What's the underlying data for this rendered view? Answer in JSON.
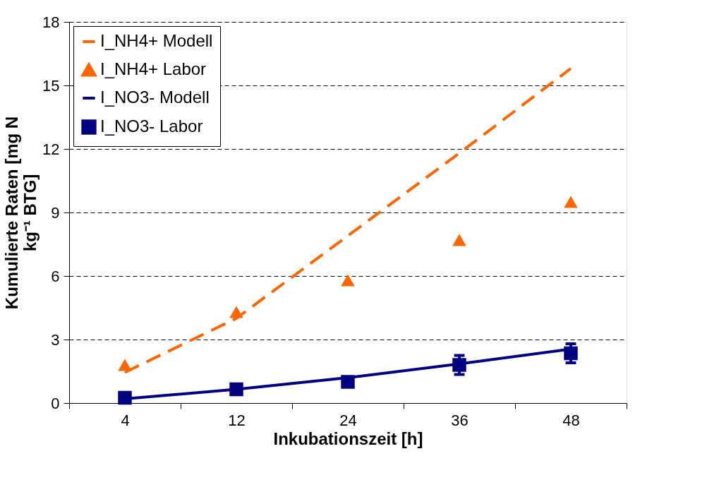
{
  "chart_data": {
    "type": "line",
    "xlabel": "Inkubationszeit [h]",
    "ylabel": "Kumulierte Raten [mg N kg⁻¹ BTG]",
    "categories": [
      "4",
      "12",
      "24",
      "36",
      "48"
    ],
    "series": [
      {
        "name": "I_NH4+ Modell",
        "color": "#ff6600",
        "line_style": "dashed",
        "marker": "none",
        "values": [
          1.45,
          4.0,
          7.9,
          11.8,
          15.8
        ]
      },
      {
        "name": "I_NH4+ Labor",
        "type": "scatter",
        "color": "#ff6600",
        "marker": "triangle",
        "values": [
          1.8,
          4.3,
          5.8,
          7.7,
          9.5
        ]
      },
      {
        "name": "I_NO3- Modell",
        "color": "#000080",
        "line_style": "solid",
        "marker": "none",
        "values": [
          0.2,
          0.65,
          1.2,
          1.85,
          2.55
        ]
      },
      {
        "name": "I_NO3- Labor",
        "type": "scatter",
        "color": "#000080",
        "marker": "square",
        "values": [
          0.25,
          0.65,
          1.0,
          1.8,
          2.35
        ],
        "errors": [
          null,
          null,
          null,
          0.45,
          0.45
        ]
      }
    ],
    "ylim": [
      0,
      18
    ],
    "yticks": [
      0,
      3,
      6,
      9,
      12,
      15,
      18
    ],
    "grid": "y",
    "legend": "top left"
  }
}
